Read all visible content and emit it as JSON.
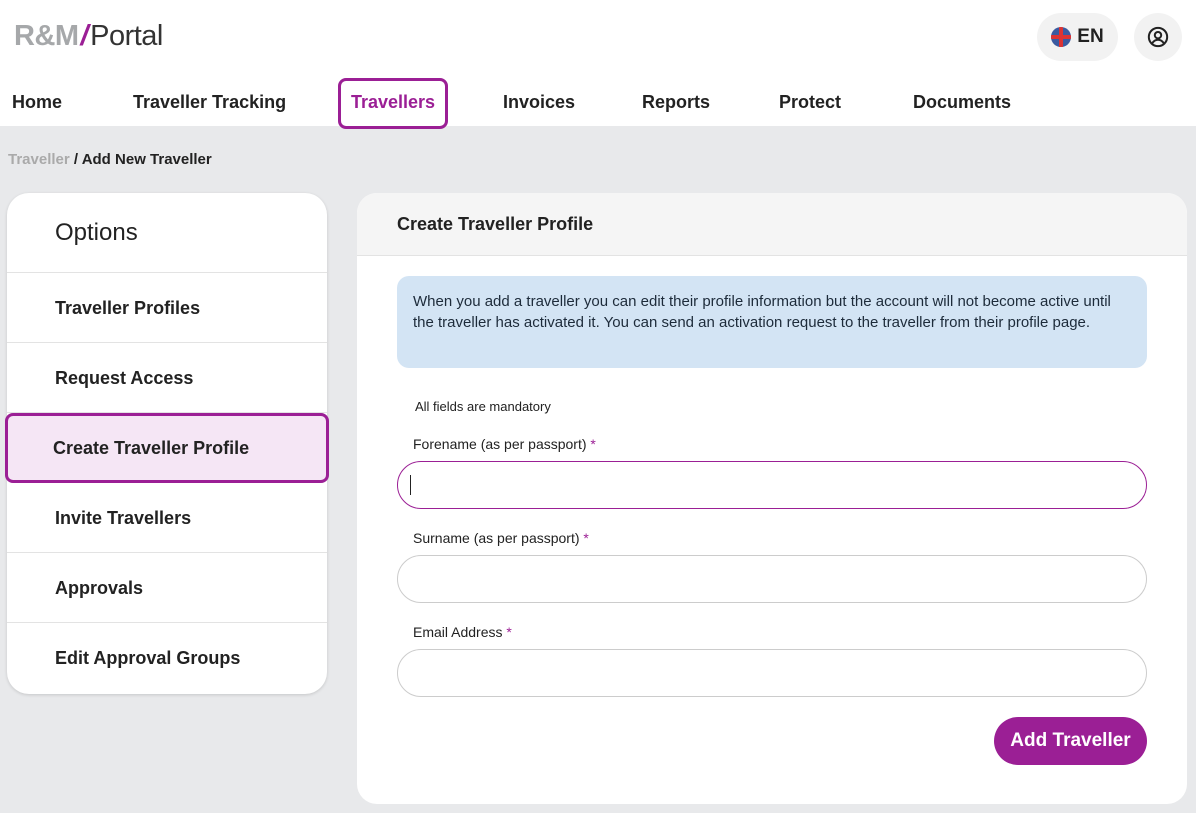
{
  "header": {
    "logo": {
      "rm": "R&M",
      "slash": "/",
      "portal": "Portal"
    },
    "language": "EN",
    "language_icon": "uk-flag-icon",
    "account_icon": "user-circle-icon"
  },
  "nav": {
    "items": [
      {
        "label": "Home"
      },
      {
        "label": "Traveller Tracking"
      },
      {
        "label": "Travellers",
        "active": true
      },
      {
        "label": "Invoices"
      },
      {
        "label": "Reports"
      },
      {
        "label": "Protect"
      },
      {
        "label": "Documents"
      }
    ]
  },
  "breadcrumb": {
    "parent": "Traveller",
    "separator": "/",
    "current": "Add New Traveller"
  },
  "sidebar": {
    "title": "Options",
    "items": [
      {
        "label": "Traveller Profiles"
      },
      {
        "label": "Request Access"
      },
      {
        "label": "Create Traveller Profile",
        "selected": true
      },
      {
        "label": "Invite Travellers"
      },
      {
        "label": "Approvals"
      },
      {
        "label": "Edit Approval Groups"
      }
    ]
  },
  "form": {
    "title": "Create Traveller Profile",
    "info": "When you add a traveller you can edit their profile information but the account will not become active until the traveller has activated it. You can send an activation request to the traveller from their profile page.",
    "mandatory_note": "All fields are mandatory",
    "required_marker": "*",
    "fields": [
      {
        "label": "Forename (as per passport)",
        "value": ""
      },
      {
        "label": "Surname (as per passport)",
        "value": ""
      },
      {
        "label": "Email Address",
        "value": ""
      }
    ],
    "submit": "Add Traveller"
  },
  "colors": {
    "accent": "#9b1f95",
    "info_bg": "#d3e4f4"
  }
}
